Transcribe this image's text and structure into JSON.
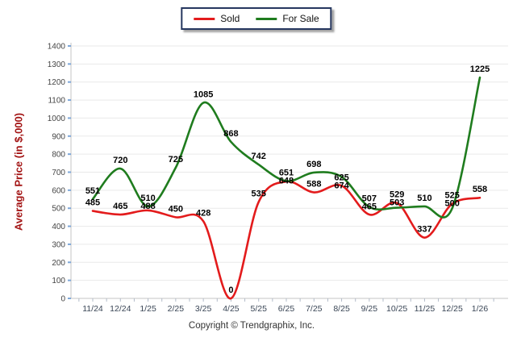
{
  "legend": {
    "items": [
      {
        "label": "Sold",
        "color": "#e31b1c"
      },
      {
        "label": "For Sale",
        "color": "#1f7c1e"
      }
    ]
  },
  "copyright": "Copyright © Trendgraphix, Inc.",
  "colors": {
    "grid": "#e9e9e9",
    "axis": "#c6c6c6",
    "y_tick": "#7da7d9",
    "x_tick": "#b3bcc9",
    "tick_label": "#3a4656",
    "data_label": "#000000",
    "y_title": "#a31515",
    "legend_border": "#26375f"
  },
  "chart_data": {
    "type": "line",
    "title": "",
    "ylabel": "Average Price (in $,000)",
    "xlabel": "",
    "categories": [
      "11/24",
      "12/24",
      "1/25",
      "2/25",
      "3/25",
      "4/25",
      "5/25",
      "6/25",
      "7/25",
      "8/25",
      "9/25",
      "10/25",
      "11/25",
      "12/25",
      "1/26"
    ],
    "series": [
      {
        "name": "Sold",
        "color": "#e31b1c",
        "values": [
          485,
          465,
          488,
          450,
          428,
          0,
          535,
          648,
          588,
          625,
          465,
          529,
          337,
          525,
          558
        ]
      },
      {
        "name": "For Sale",
        "color": "#1f7c1e",
        "values": [
          551,
          720,
          510,
          725,
          1085,
          868,
          742,
          651,
          698,
          674,
          507,
          503,
          510,
          500,
          1225
        ]
      }
    ],
    "ylim": [
      0,
      1400
    ],
    "ytick_step": 100,
    "grid": true,
    "smooth": true,
    "point_labels": true,
    "legend_position": "top-center",
    "label_top_overrides": {
      "9": "Sold"
    }
  }
}
